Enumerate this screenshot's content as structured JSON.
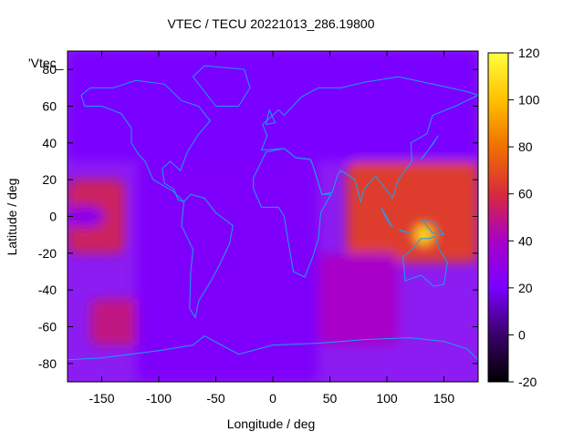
{
  "chart_data": {
    "type": "heatmap",
    "title": "VTEC / TECU 20221013_286.19800",
    "xlabel": "Longitude / deg",
    "ylabel": "Latitude / deg",
    "legend_key": "'Vtec_",
    "xlim": [
      -180,
      180
    ],
    "ylim": [
      -90,
      90
    ],
    "x_ticks": [
      -150,
      -100,
      -50,
      0,
      50,
      100,
      150
    ],
    "y_ticks": [
      -80,
      -60,
      -40,
      -20,
      0,
      20,
      40,
      60,
      80
    ],
    "colorbar": {
      "range": [
        -20,
        120
      ],
      "ticks": [
        -20,
        0,
        20,
        40,
        60,
        80,
        100,
        120
      ],
      "palette": [
        "#000000",
        "#3a006a",
        "#7a00ff",
        "#a800c8",
        "#d82a3c",
        "#f07000",
        "#ffc000",
        "#ffff40"
      ]
    },
    "grid": false,
    "overlay": "coastlines",
    "overlay_color": "#1aa0f0",
    "features": [
      {
        "region": "Indian Ocean / SE Asia equatorial anomaly",
        "lon": [
          65,
          180
        ],
        "lat": [
          -25,
          30
        ],
        "value": 65
      },
      {
        "region": "Peak near Indonesia",
        "lon": [
          125,
          140
        ],
        "lat": [
          -15,
          -5
        ],
        "value": 110
      },
      {
        "region": "East Pacific band",
        "lon": [
          -180,
          -130
        ],
        "lat": [
          -20,
          20
        ],
        "value": 55
      },
      {
        "region": "South Pacific high-latitude patch",
        "lon": [
          -160,
          -110
        ],
        "lat": [
          -70,
          -45
        ],
        "value": 50
      },
      {
        "region": "Southern Africa / Indian Ocean",
        "lon": [
          40,
          110
        ],
        "lat": [
          -70,
          -20
        ],
        "value": 40
      },
      {
        "region": "Northern background",
        "lon": [
          -180,
          180
        ],
        "lat": [
          30,
          90
        ],
        "value": 20
      },
      {
        "region": "Atlantic / Americas background",
        "lon": [
          -120,
          40
        ],
        "lat": [
          -90,
          30
        ],
        "value": 22
      }
    ]
  }
}
